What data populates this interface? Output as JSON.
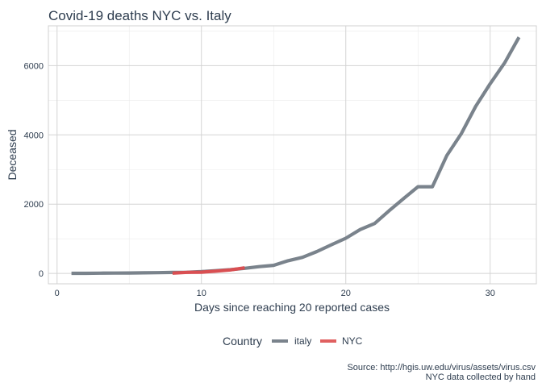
{
  "chart_data": {
    "type": "line",
    "title": "Covid-19 deaths NYC vs. Italy",
    "xlabel": "Days since reaching 20 reported cases",
    "ylabel": "Deceased",
    "xlim": [
      -0.6,
      33.2
    ],
    "ylim": [
      -300,
      7150
    ],
    "x_ticks": [
      0,
      10,
      20,
      30
    ],
    "y_ticks": [
      0,
      2000,
      4000,
      6000
    ],
    "x_tick_labels": [
      "0",
      "10",
      "20",
      "30"
    ],
    "y_tick_labels": [
      "0",
      "2000",
      "4000",
      "6000"
    ],
    "grid": true,
    "legend": {
      "title": "Country",
      "position": "bottom"
    },
    "caption": [
      "Source: http://hgis.uw.edu/virus/assets/virus.csv",
      "NYC data collected by hand"
    ],
    "series": [
      {
        "name": "italy",
        "color": "#7a838c",
        "x": [
          1,
          2,
          3,
          4,
          5,
          6,
          7,
          8,
          9,
          10,
          11,
          12,
          13,
          14,
          15,
          16,
          17,
          18,
          19,
          20,
          21,
          22,
          23,
          24,
          25,
          26,
          27,
          28,
          29,
          30,
          31,
          32
        ],
        "y": [
          2,
          3,
          7,
          10,
          12,
          17,
          21,
          29,
          34,
          52,
          79,
          107,
          148,
          197,
          233,
          366,
          463,
          631,
          827,
          1016,
          1266,
          1441,
          1809,
          2158,
          2503,
          2503,
          3405,
          4032,
          4825,
          5476,
          6077,
          6820
        ]
      },
      {
        "name": "NYC",
        "color": "#d94f52",
        "x": [
          8,
          9,
          10,
          11,
          12,
          13
        ],
        "y": [
          8,
          30,
          36,
          65,
          100,
          160
        ]
      }
    ]
  }
}
